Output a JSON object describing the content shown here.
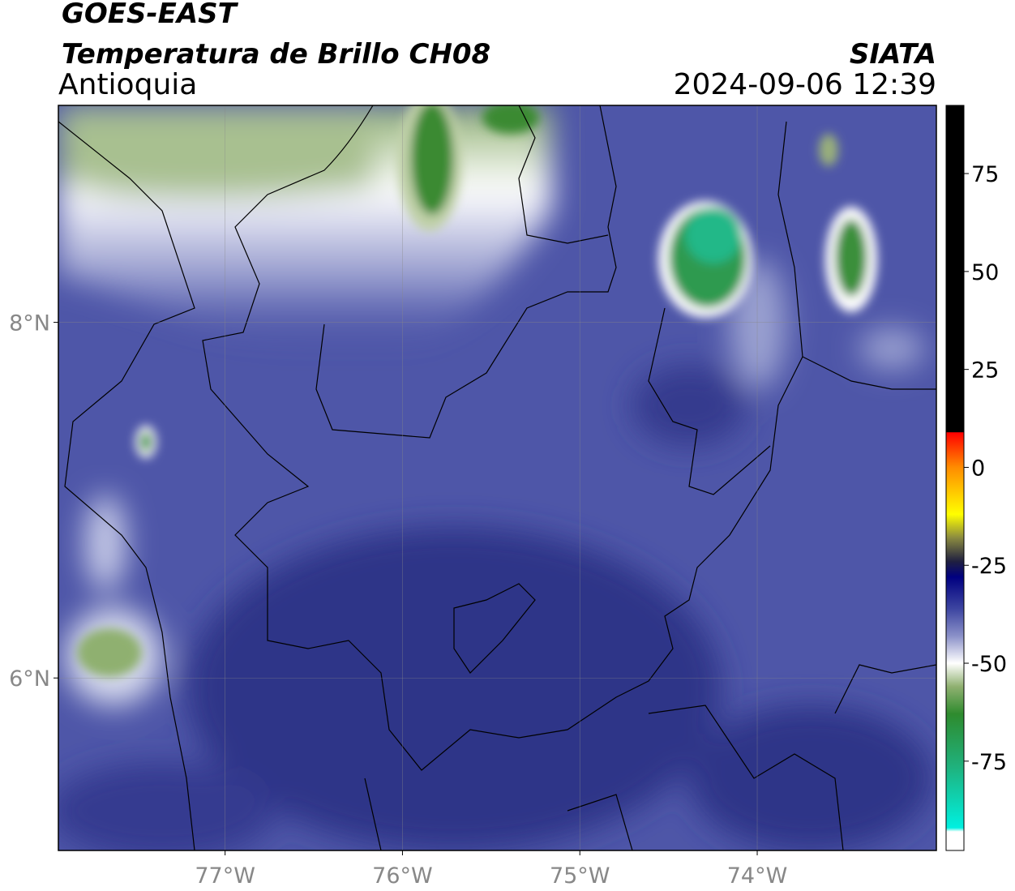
{
  "header": {
    "satellite": "GOES-EAST",
    "title": "Temperatura de Brillo CH08",
    "region": "Antioquia",
    "source": "SIATA",
    "datetime": "2024-09-06 12:39"
  },
  "map": {
    "lonlim": [
      -77.94,
      -72.99
    ],
    "latlim": [
      5.03,
      9.22
    ],
    "lonticks": [
      {
        "value": -77,
        "label": "77°W"
      },
      {
        "value": -76,
        "label": "76°W"
      },
      {
        "value": -75,
        "label": "75°W"
      },
      {
        "value": -74,
        "label": "74°W"
      }
    ],
    "latticks": [
      {
        "value": 8,
        "label": "8°N"
      },
      {
        "value": 6,
        "label": "6°N"
      }
    ]
  },
  "colorbar": {
    "clim": [
      -97.8,
      92.4
    ],
    "ticks": [
      75,
      50,
      25,
      0,
      -25,
      -50,
      -75
    ],
    "stops": [
      {
        "value": 92.4,
        "color": "#000000"
      },
      {
        "value": 9,
        "color": "#000000"
      },
      {
        "value": 8.9,
        "color": "#ff0000"
      },
      {
        "value": 0,
        "color": "#ff8c00"
      },
      {
        "value": -12,
        "color": "#ffff00"
      },
      {
        "value": -18,
        "color": "#8a8a40"
      },
      {
        "value": -24,
        "color": "#202040"
      },
      {
        "value": -28,
        "color": "#000080"
      },
      {
        "value": -36,
        "color": "#3c44a0"
      },
      {
        "value": -43,
        "color": "#8a90c8"
      },
      {
        "value": -50,
        "color": "#ffffff"
      },
      {
        "value": -56,
        "color": "#8fb070"
      },
      {
        "value": -63,
        "color": "#2e8b2e"
      },
      {
        "value": -76,
        "color": "#20b07a"
      },
      {
        "value": -92,
        "color": "#00f0e0"
      },
      {
        "value": -93,
        "color": "#ffffff"
      },
      {
        "value": -97.8,
        "color": "#ffffff"
      }
    ]
  }
}
